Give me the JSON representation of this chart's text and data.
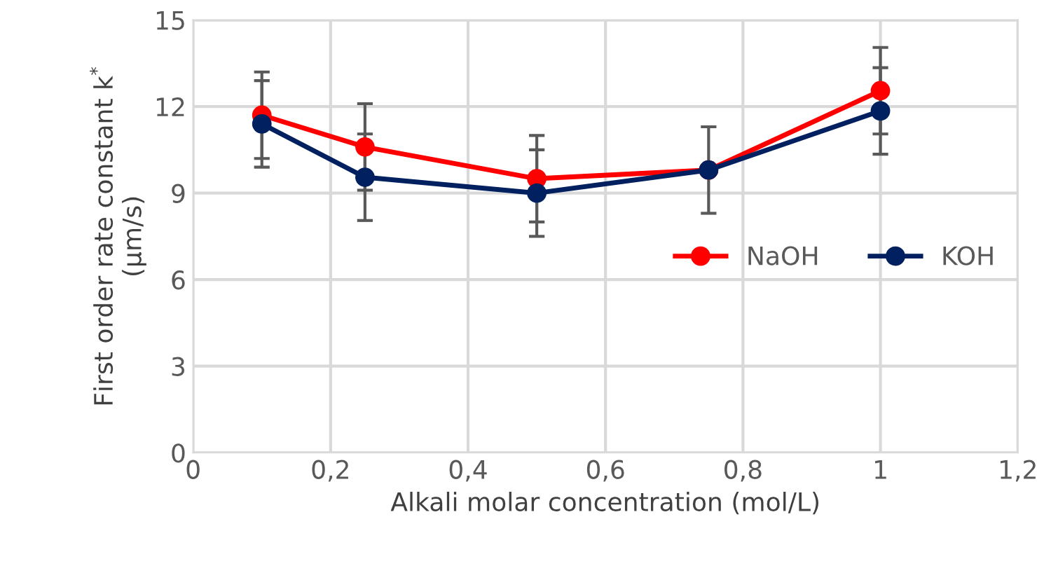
{
  "chart_data": {
    "type": "line",
    "xlabel": "Alkali molar concentration (mol/L)",
    "ylabel": "First order rate constant k$^{*}$\n(µm/s)",
    "x": [
      0.1,
      0.25,
      0.5,
      0.75,
      1
    ],
    "series": [
      {
        "name": "NaOH",
        "color": "#ff0000",
        "values": [
          11.7,
          10.6,
          9.5,
          9.8,
          12.55
        ],
        "errors": [
          1.5,
          1.5,
          1.5,
          null,
          1.5
        ]
      },
      {
        "name": "KOH",
        "color": "#002060",
        "values": [
          11.4,
          9.55,
          9.0,
          9.8,
          11.85
        ],
        "errors": [
          1.5,
          1.5,
          1.5,
          1.5,
          1.5
        ]
      }
    ],
    "xlim": [
      0,
      1.2
    ],
    "xticks": [
      {
        "value": 0,
        "label": "0"
      },
      {
        "value": 0.2,
        "label": "0,2"
      },
      {
        "value": 0.4,
        "label": "0,4"
      },
      {
        "value": 0.6,
        "label": "0,6"
      },
      {
        "value": 0.8,
        "label": "0,8"
      },
      {
        "value": 1,
        "label": "1"
      },
      {
        "value": 1.2,
        "label": "1,2"
      }
    ],
    "ylim": [
      0,
      15
    ],
    "yticks": [
      0,
      3,
      6,
      9,
      12,
      15
    ],
    "grid": true,
    "legend": "right",
    "marker": "circle",
    "line_style": "solid"
  }
}
